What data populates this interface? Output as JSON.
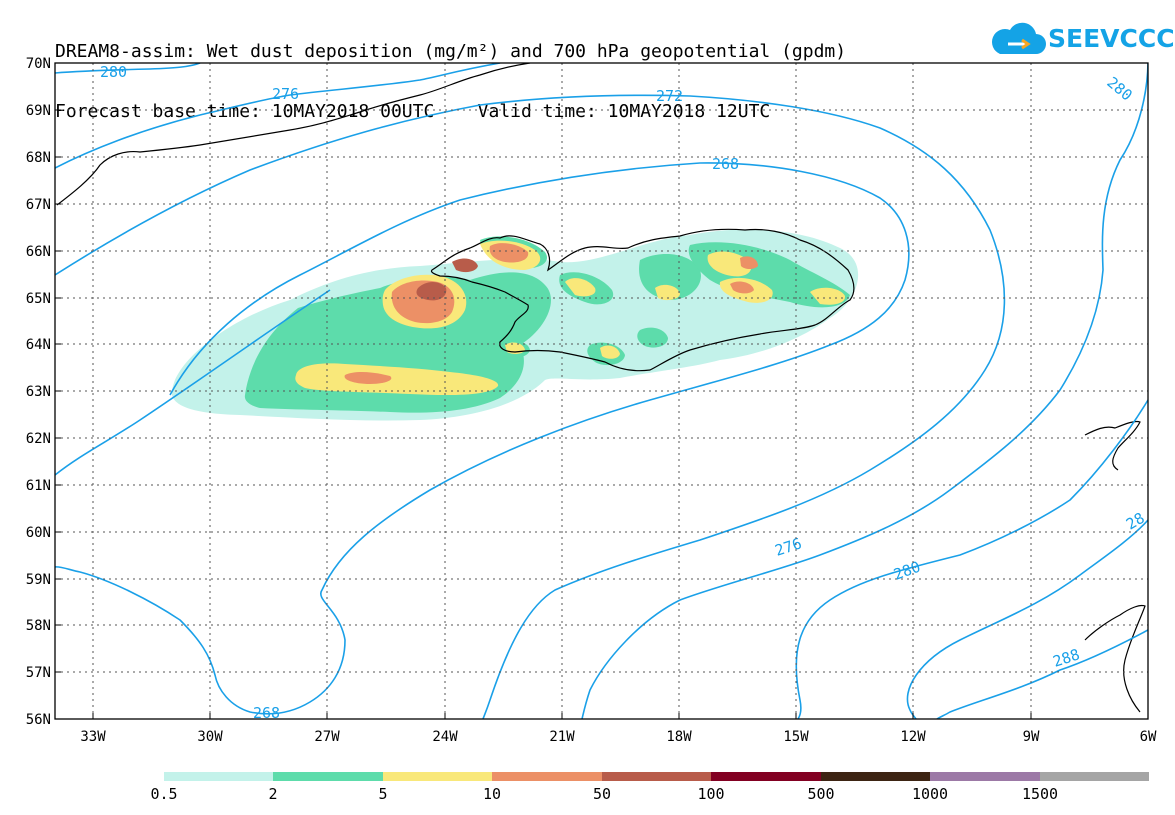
{
  "title": {
    "line1": "DREAM8-assim: Wet dust deposition (mg/m²) and 700 hPa geopotential (gpdm)",
    "line2": "Forecast base time: 10MAY2018 00UTC    Valid time: 10MAY2018 12UTC"
  },
  "logo": {
    "text": "SEEVCCC"
  },
  "map": {
    "lat_labels": [
      "70N",
      "69N",
      "68N",
      "67N",
      "66N",
      "65N",
      "64N",
      "63N",
      "62N",
      "61N",
      "60N",
      "59N",
      "58N",
      "57N",
      "56N"
    ],
    "lon_labels": [
      "33W",
      "30W",
      "27W",
      "24W",
      "21W",
      "18W",
      "15W",
      "12W",
      "9W",
      "6W"
    ],
    "contour_labels": [
      "280",
      "276",
      "272",
      "268",
      "280",
      "276",
      "280",
      "28",
      "288",
      "268"
    ]
  },
  "legend": {
    "colors": [
      "#c3f2ea",
      "#5ddcab",
      "#f9e87a",
      "#ec9066",
      "#b85c4a",
      "#820022",
      "#3d2413",
      "#9c79a6",
      "#a5a5a5"
    ],
    "labels": [
      "0.5",
      "2",
      "5",
      "10",
      "50",
      "100",
      "500",
      "1000",
      "1500"
    ]
  }
}
